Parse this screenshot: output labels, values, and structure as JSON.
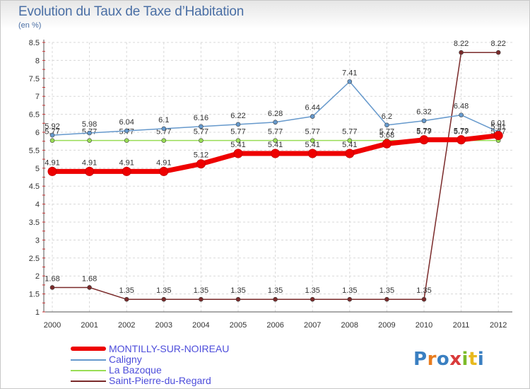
{
  "title": "Evolution du Taux de Taxe d’Habitation",
  "subtitle": "(en %)",
  "logo": {
    "text": "Proxiti",
    "colors": [
      "#3a7fc1",
      "#e87c1e",
      "#3a7fc1",
      "#d93a3a",
      "#7dbb2a",
      "#e8b91e",
      "#3a7fc1"
    ]
  },
  "chart_data": {
    "type": "line",
    "x": [
      2000,
      2001,
      2002,
      2003,
      2004,
      2005,
      2006,
      2007,
      2008,
      2009,
      2010,
      2011,
      2012
    ],
    "xlabels": [
      "2000",
      "2001",
      "2002",
      "2003",
      "2004",
      "2005",
      "2006",
      "2007",
      "2008",
      "2009",
      "2010",
      "2011",
      "2012"
    ],
    "ylim": [
      1,
      8.5
    ],
    "yticks": [
      1,
      1.5,
      2,
      2.5,
      3,
      3.5,
      4,
      4.5,
      5,
      5.5,
      6,
      6.5,
      7,
      7.5,
      8,
      8.5
    ],
    "ytick_labels": [
      "1",
      "1.5",
      "2",
      "2.5",
      "3",
      "3.5",
      "4",
      "4.5",
      "5",
      "5.5",
      "6",
      "6.5",
      "7",
      "7.5",
      "8",
      "8.5"
    ],
    "grid": true,
    "series": [
      {
        "name": "Saint-Pierre-du-Regard",
        "color": "#7a2a2a",
        "values": [
          1.68,
          1.68,
          1.35,
          1.35,
          1.35,
          1.35,
          1.35,
          1.35,
          1.35,
          1.35,
          1.35,
          8.22,
          8.22
        ],
        "labels": [
          "1.68",
          "1.68",
          "1.35",
          "1.35",
          "1.35",
          "1.35",
          "1.35",
          "1.35",
          "1.35",
          "1.35",
          "1.35",
          "8.22",
          "8.22"
        ]
      },
      {
        "name": "La Bazoque",
        "color": "#99dd55",
        "values": [
          5.77,
          5.77,
          5.77,
          5.77,
          5.77,
          5.77,
          5.77,
          5.77,
          5.77,
          5.77,
          5.77,
          5.77,
          5.77
        ],
        "labels": [
          "5.77",
          "5.77",
          "5.77",
          "5.77",
          "5.77",
          "5.77",
          "5.77",
          "5.77",
          "5.77",
          "5.77",
          "5.77",
          "5.77",
          "5.77"
        ]
      },
      {
        "name": "Caligny",
        "color": "#6699cc",
        "values": [
          5.92,
          5.98,
          6.04,
          6.1,
          6.16,
          6.22,
          6.28,
          6.44,
          7.41,
          6.2,
          6.32,
          6.48,
          6.01
        ],
        "labels": [
          "5.92",
          "5.98",
          "6.04",
          "6.1",
          "6.16",
          "6.22",
          "6.28",
          "6.44",
          "7.41",
          "6.2",
          "6.32",
          "6.48",
          "6.01"
        ]
      },
      {
        "name": "MONTILLY-SUR-NOIREAU",
        "color": "#ee0000",
        "values": [
          4.91,
          4.91,
          4.91,
          4.91,
          5.12,
          5.41,
          5.41,
          5.41,
          5.41,
          5.68,
          5.79,
          5.79,
          5.91
        ],
        "labels": [
          "4.91",
          "4.91",
          "4.91",
          "4.91",
          "5.12",
          "5.41",
          "5.41",
          "5.41",
          "5.41",
          "5.68",
          "5.79",
          "5.79",
          "5.91"
        ]
      }
    ],
    "legend_order": [
      "MONTILLY-SUR-NOIREAU",
      "Caligny",
      "La Bazoque",
      "Saint-Pierre-du-Regard"
    ],
    "legend_position": "bottom-left"
  }
}
